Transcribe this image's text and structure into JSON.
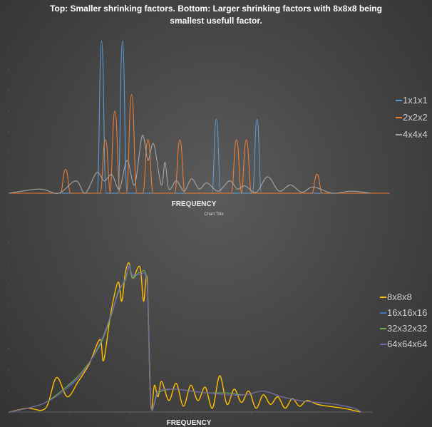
{
  "heading": {
    "line1": "Top: Smaller shrinking factors. Bottom: Larger shrinking factors with 8x8x8 being",
    "line2": "smallest usefull factor."
  },
  "chart_data": [
    {
      "type": "line",
      "title": "",
      "xlabel": "FREQUENCY",
      "ylabel": "",
      "xlim": [
        0,
        1
      ],
      "ylim": [
        0,
        0.4
      ],
      "grid": false,
      "legend": "right",
      "series": [
        {
          "name": "1x1x1",
          "color": "#5b9bd5",
          "x": [
            0.243,
            0.298,
            0.545,
            0.652
          ],
          "values": [
            0.37,
            0.37,
            0.18,
            0.18
          ]
        },
        {
          "name": "2x2x2",
          "color": "#ed7d31",
          "x": [
            0.148,
            0.253,
            0.278,
            0.322,
            0.365,
            0.449,
            0.598,
            0.624,
            0.81
          ],
          "values": [
            0.058,
            0.13,
            0.2,
            0.24,
            0.13,
            0.13,
            0.13,
            0.13,
            0.046
          ]
        },
        {
          "name": "4x4x4",
          "color": "#a5a5a5",
          "x": [
            0.0,
            0.08,
            0.13,
            0.175,
            0.2,
            0.23,
            0.25,
            0.27,
            0.29,
            0.31,
            0.33,
            0.35,
            0.365,
            0.38,
            0.4,
            0.41,
            0.42,
            0.44,
            0.46,
            0.48,
            0.5,
            0.52,
            0.55,
            0.58,
            0.6,
            0.62,
            0.65,
            0.68,
            0.71,
            0.74,
            0.77,
            0.8,
            0.85,
            0.9,
            0.95
          ],
          "values": [
            0.0,
            0.01,
            0.0,
            0.03,
            0.0,
            0.05,
            0.03,
            0.045,
            0.01,
            0.08,
            0.02,
            0.14,
            0.08,
            0.12,
            0.02,
            0.075,
            0.01,
            0.03,
            0.005,
            0.035,
            0.01,
            0.025,
            0.005,
            0.03,
            0.01,
            0.018,
            0.002,
            0.04,
            0.005,
            0.02,
            0.002,
            0.015,
            0.0,
            0.005,
            0.0
          ]
        }
      ]
    },
    {
      "type": "line",
      "title": "Chart Title",
      "xlabel": "FREQUENCY",
      "ylabel": "",
      "xlim": [
        0,
        1
      ],
      "ylim": [
        0,
        0.1
      ],
      "grid": false,
      "legend": "right",
      "series": [
        {
          "name": "8x8x8",
          "color": "#ffc000",
          "x": [
            0.0,
            0.05,
            0.1,
            0.13,
            0.16,
            0.19,
            0.22,
            0.25,
            0.26,
            0.28,
            0.3,
            0.31,
            0.32,
            0.33,
            0.34,
            0.36,
            0.37,
            0.38,
            0.39,
            0.4,
            0.41,
            0.42,
            0.44,
            0.46,
            0.48,
            0.5,
            0.52,
            0.54,
            0.56,
            0.58,
            0.6,
            0.62,
            0.64,
            0.66,
            0.68,
            0.7,
            0.72,
            0.74,
            0.76,
            0.78,
            0.8,
            0.82,
            0.85,
            0.88,
            0.92,
            0.97
          ],
          "values": [
            0.0,
            0.002,
            0.002,
            0.018,
            0.008,
            0.016,
            0.025,
            0.038,
            0.027,
            0.052,
            0.068,
            0.058,
            0.073,
            0.078,
            0.07,
            0.076,
            0.058,
            0.069,
            0.004,
            0.014,
            0.008,
            0.016,
            0.006,
            0.015,
            0.003,
            0.014,
            0.006,
            0.013,
            0.002,
            0.019,
            0.004,
            0.012,
            0.005,
            0.011,
            0.002,
            0.009,
            0.004,
            0.008,
            0.002,
            0.007,
            0.003,
            0.006,
            0.004,
            0.003,
            0.002,
            0.0
          ]
        },
        {
          "name": "16x16x16",
          "color": "#4472c4",
          "x": [
            0.0,
            0.05,
            0.1,
            0.15,
            0.2,
            0.25,
            0.28,
            0.3,
            0.32,
            0.33,
            0.34,
            0.36,
            0.38,
            0.39,
            0.41,
            0.45,
            0.5,
            0.55,
            0.6,
            0.65,
            0.7,
            0.75,
            0.8,
            0.85,
            0.9,
            0.95,
            0.97
          ],
          "values": [
            0.0,
            0.002,
            0.005,
            0.012,
            0.02,
            0.036,
            0.05,
            0.062,
            0.07,
            0.077,
            0.071,
            0.072,
            0.066,
            0.004,
            0.01,
            0.012,
            0.011,
            0.01,
            0.01,
            0.009,
            0.011,
            0.008,
            0.006,
            0.005,
            0.004,
            0.002,
            0.0
          ]
        },
        {
          "name": "32x32x32",
          "color": "#70ad47",
          "x": [
            0.0,
            0.05,
            0.1,
            0.15,
            0.2,
            0.25,
            0.28,
            0.3,
            0.32,
            0.33,
            0.34,
            0.36,
            0.38,
            0.39,
            0.41,
            0.45,
            0.5,
            0.55,
            0.6,
            0.65,
            0.7,
            0.75,
            0.8,
            0.85,
            0.9,
            0.95,
            0.97
          ],
          "values": [
            0.0,
            0.002,
            0.005,
            0.012,
            0.021,
            0.035,
            0.05,
            0.063,
            0.069,
            0.076,
            0.07,
            0.073,
            0.067,
            0.004,
            0.01,
            0.012,
            0.011,
            0.01,
            0.01,
            0.009,
            0.011,
            0.008,
            0.006,
            0.005,
            0.004,
            0.002,
            0.0
          ]
        },
        {
          "name": "64x64x64",
          "color": "#7a62b0",
          "x": [
            0.0,
            0.05,
            0.1,
            0.15,
            0.2,
            0.25,
            0.28,
            0.3,
            0.32,
            0.33,
            0.34,
            0.36,
            0.38,
            0.39,
            0.41,
            0.45,
            0.5,
            0.55,
            0.6,
            0.65,
            0.7,
            0.75,
            0.8,
            0.85,
            0.9,
            0.95,
            0.97
          ],
          "values": [
            0.0,
            0.002,
            0.005,
            0.011,
            0.02,
            0.036,
            0.051,
            0.062,
            0.07,
            0.076,
            0.072,
            0.072,
            0.066,
            0.004,
            0.011,
            0.012,
            0.011,
            0.01,
            0.009,
            0.009,
            0.011,
            0.008,
            0.006,
            0.005,
            0.004,
            0.002,
            0.0
          ]
        }
      ]
    }
  ]
}
